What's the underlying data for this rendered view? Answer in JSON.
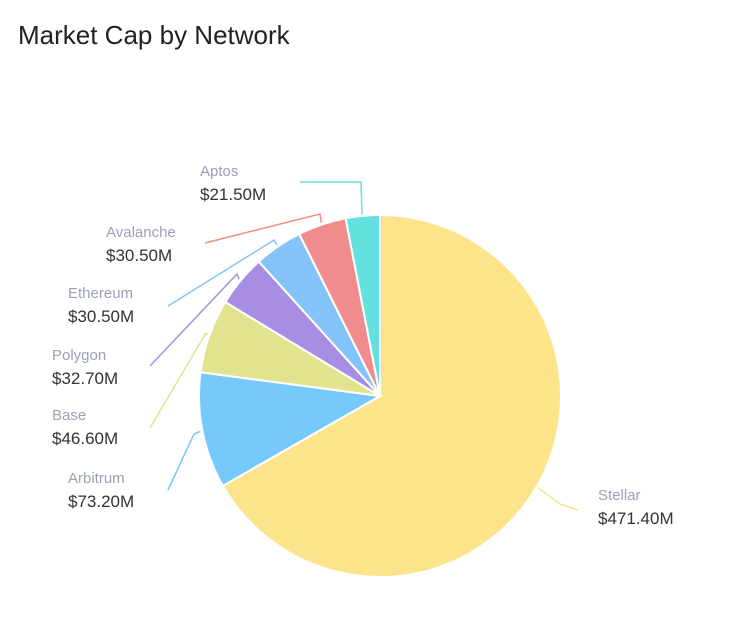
{
  "chart_data": {
    "type": "pie",
    "title": "Market Cap by Network",
    "slices": [
      {
        "label": "Stellar",
        "value": 471.4,
        "display": "$471.40M",
        "color": "#fde38a"
      },
      {
        "label": "Arbitrum",
        "value": 73.2,
        "display": "$73.20M",
        "color": "#75c9fb"
      },
      {
        "label": "Base",
        "value": 46.6,
        "display": "$46.60M",
        "color": "#e2e38f"
      },
      {
        "label": "Polygon",
        "value": 32.7,
        "display": "$32.70M",
        "color": "#a78de3"
      },
      {
        "label": "Ethereum",
        "value": 30.5,
        "display": "$30.50M",
        "color": "#84c4fb"
      },
      {
        "label": "Avalanche",
        "value": 30.5,
        "display": "$30.50M",
        "color": "#f08d8c"
      },
      {
        "label": "Aptos",
        "value": 21.5,
        "display": "$21.50M",
        "color": "#63e1de"
      }
    ],
    "legend": "none"
  }
}
